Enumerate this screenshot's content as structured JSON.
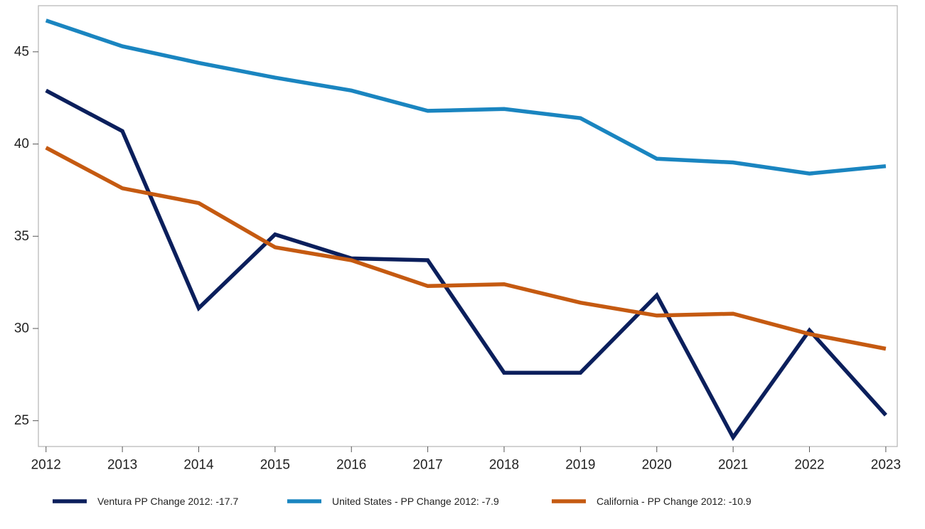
{
  "chart_data": {
    "type": "line",
    "title": "",
    "xlabel": "",
    "ylabel": "",
    "x": [
      2012,
      2013,
      2014,
      2015,
      2016,
      2017,
      2018,
      2019,
      2020,
      2021,
      2022,
      2023
    ],
    "xlim": [
      2011.9,
      2023.15
    ],
    "ylim": [
      23.6,
      47.5
    ],
    "yticks": [
      25,
      30,
      35,
      40,
      45
    ],
    "grid": false,
    "legend_position": "bottom",
    "series": [
      {
        "name": "Ventura PP Change 2012: -17.7",
        "color": "#0b1f5c",
        "values": [
          42.9,
          40.7,
          31.1,
          35.1,
          33.8,
          33.7,
          27.6,
          27.6,
          31.8,
          24.1,
          29.9,
          25.3
        ]
      },
      {
        "name": "United States - PP Change 2012: -7.9",
        "color": "#1a85c0",
        "values": [
          46.7,
          45.3,
          44.4,
          43.6,
          42.9,
          41.8,
          41.9,
          41.4,
          39.2,
          39.0,
          38.4,
          38.8
        ]
      },
      {
        "name": "California - PP Change 2012: -10.9",
        "color": "#c55a11",
        "values": [
          39.8,
          37.6,
          36.8,
          34.4,
          33.7,
          32.3,
          32.4,
          31.4,
          30.7,
          30.8,
          29.7,
          28.9
        ]
      }
    ]
  }
}
